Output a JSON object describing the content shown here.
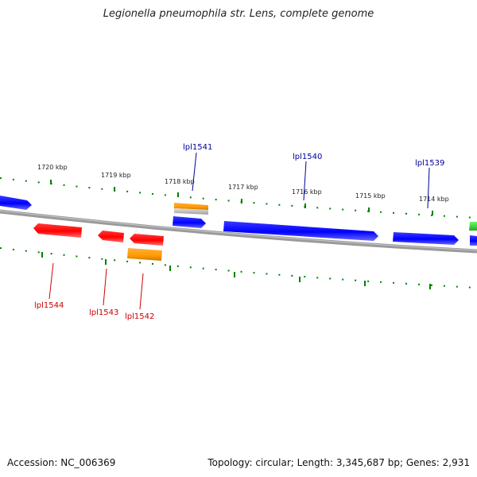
{
  "title": "Legionella pneumophila str. Lens, complete genome",
  "footer": {
    "accession": "Accession: NC_006369",
    "summary": "Topology: circular; Length: 3,345,687 bp; Genes: 2,931"
  },
  "colors": {
    "forward_gene": "#0000ff",
    "reverse_gene": "#ff0000",
    "orange_feature": "#ff9900",
    "green_feature": "#33cc33",
    "backbone": "#808080",
    "tick": "#008000",
    "forward_label": "#000099",
    "reverse_label": "#cc0000"
  },
  "scale_labels": [
    "1720 kbp",
    "1719 kbp",
    "1718 kbp",
    "1717 kbp",
    "1716 kbp",
    "1715 kbp",
    "1714 kbp"
  ],
  "gene_labels": {
    "forward": [
      "lpl1541",
      "lpl1540",
      "lpl1539"
    ],
    "reverse": [
      "lpl1544",
      "lpl1543",
      "lpl1542"
    ]
  }
}
